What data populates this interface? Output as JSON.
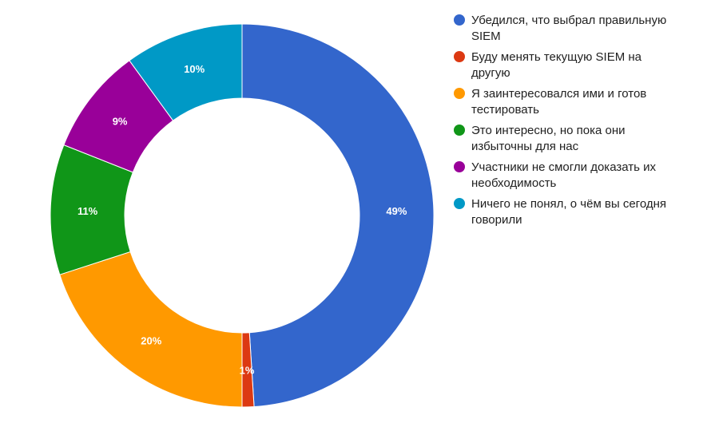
{
  "chart_data": {
    "type": "pie",
    "donut": true,
    "legend_position": "right",
    "slices": [
      {
        "label": "Убедился, что выбрал правильную SIEM",
        "value": 49,
        "display": "49%",
        "color": "#3366cc",
        "label_color": "#ffffff"
      },
      {
        "label": "Буду менять текущую SIEM на другую",
        "value": 1,
        "display": "1%",
        "color": "#dc3912",
        "label_color": "#ffffff"
      },
      {
        "label": "Я заинтересовался ими и готов тестировать",
        "value": 20,
        "display": "20%",
        "color": "#ff9900",
        "label_color": "#ffffff"
      },
      {
        "label": "Это интересно, но пока они избыточны для нас",
        "value": 11,
        "display": "11%",
        "color": "#109618",
        "label_color": "#ffffff"
      },
      {
        "label": "Участники не смогли доказать их необходимость",
        "value": 9,
        "display": "9%",
        "color": "#990099",
        "label_color": "#ffffff"
      },
      {
        "label": "Ничего не понял, о чём вы сегодня говорили",
        "value": 10,
        "display": "10%",
        "color": "#0099c6",
        "label_color": "#ffffff"
      }
    ]
  }
}
